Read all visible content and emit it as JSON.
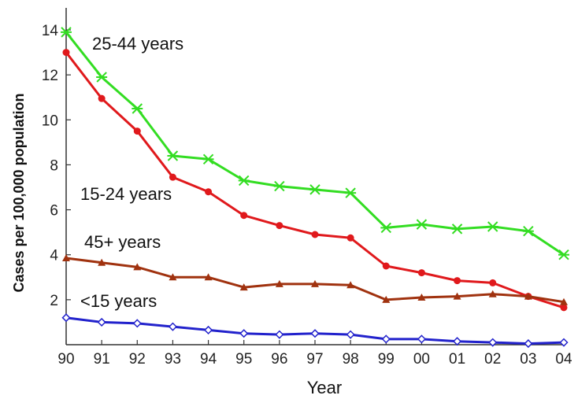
{
  "chart_data": {
    "type": "line",
    "title": "",
    "xlabel": "Year",
    "ylabel": "Cases per 100,000 population",
    "categories": [
      "90",
      "91",
      "92",
      "93",
      "94",
      "95",
      "96",
      "97",
      "98",
      "99",
      "00",
      "01",
      "02",
      "03",
      "04"
    ],
    "yticks": [
      "2",
      "4",
      "6",
      "8",
      "10",
      "12",
      "14"
    ],
    "ylim": [
      0,
      14.3
    ],
    "grid": false,
    "series": [
      {
        "name": "25-44 years",
        "color": "#33dd22",
        "marker": "x",
        "values": [
          13.9,
          11.9,
          10.5,
          8.4,
          8.25,
          7.3,
          7.05,
          6.9,
          6.75,
          5.2,
          5.35,
          5.15,
          5.25,
          5.05,
          4.0
        ]
      },
      {
        "name": "15-24 years",
        "color": "#e0191c",
        "marker": "circle",
        "values": [
          13.0,
          10.95,
          9.5,
          7.45,
          6.8,
          5.75,
          5.3,
          4.9,
          4.75,
          3.5,
          3.2,
          2.85,
          2.75,
          2.15,
          1.65
        ]
      },
      {
        "name": "45+ years",
        "color": "#a0320f",
        "marker": "triangle",
        "values": [
          3.85,
          3.65,
          3.45,
          3.0,
          3.0,
          2.55,
          2.7,
          2.7,
          2.65,
          2.0,
          2.1,
          2.15,
          2.25,
          2.15,
          1.9
        ]
      },
      {
        "name": "<15 years",
        "color": "#2222cc",
        "marker": "diamond",
        "values": [
          1.2,
          1.0,
          0.95,
          0.8,
          0.65,
          0.5,
          0.45,
          0.5,
          0.45,
          0.25,
          0.25,
          0.15,
          0.1,
          0.05,
          0.1
        ]
      }
    ]
  }
}
